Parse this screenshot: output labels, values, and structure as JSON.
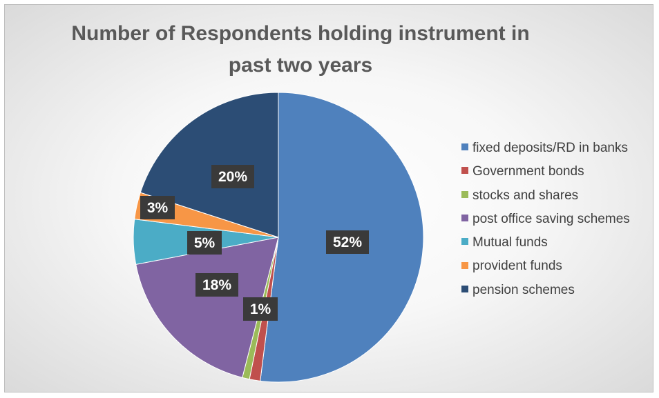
{
  "chart_data": {
    "type": "pie",
    "title": "Number of Respondents holding instrument in past two years",
    "title_lines": [
      "Number of Respondents holding instrument in",
      "past two years"
    ],
    "categories": [
      "fixed deposits/RD in banks",
      "Government bonds",
      "stocks and shares",
      "post office saving schemes",
      "Mutual funds",
      "provident funds",
      "pension schemes"
    ],
    "values": [
      52,
      1.2,
      0.8,
      18,
      5,
      3,
      20
    ],
    "data_labels": [
      "52%",
      "1%",
      "",
      "18%",
      "5%",
      "3%",
      "20%"
    ],
    "colors": [
      "#4f81bd",
      "#c0504d",
      "#9bbb59",
      "#8064a2",
      "#4bacc6",
      "#f79646",
      "#2c4d75"
    ],
    "legend_position": "right"
  }
}
